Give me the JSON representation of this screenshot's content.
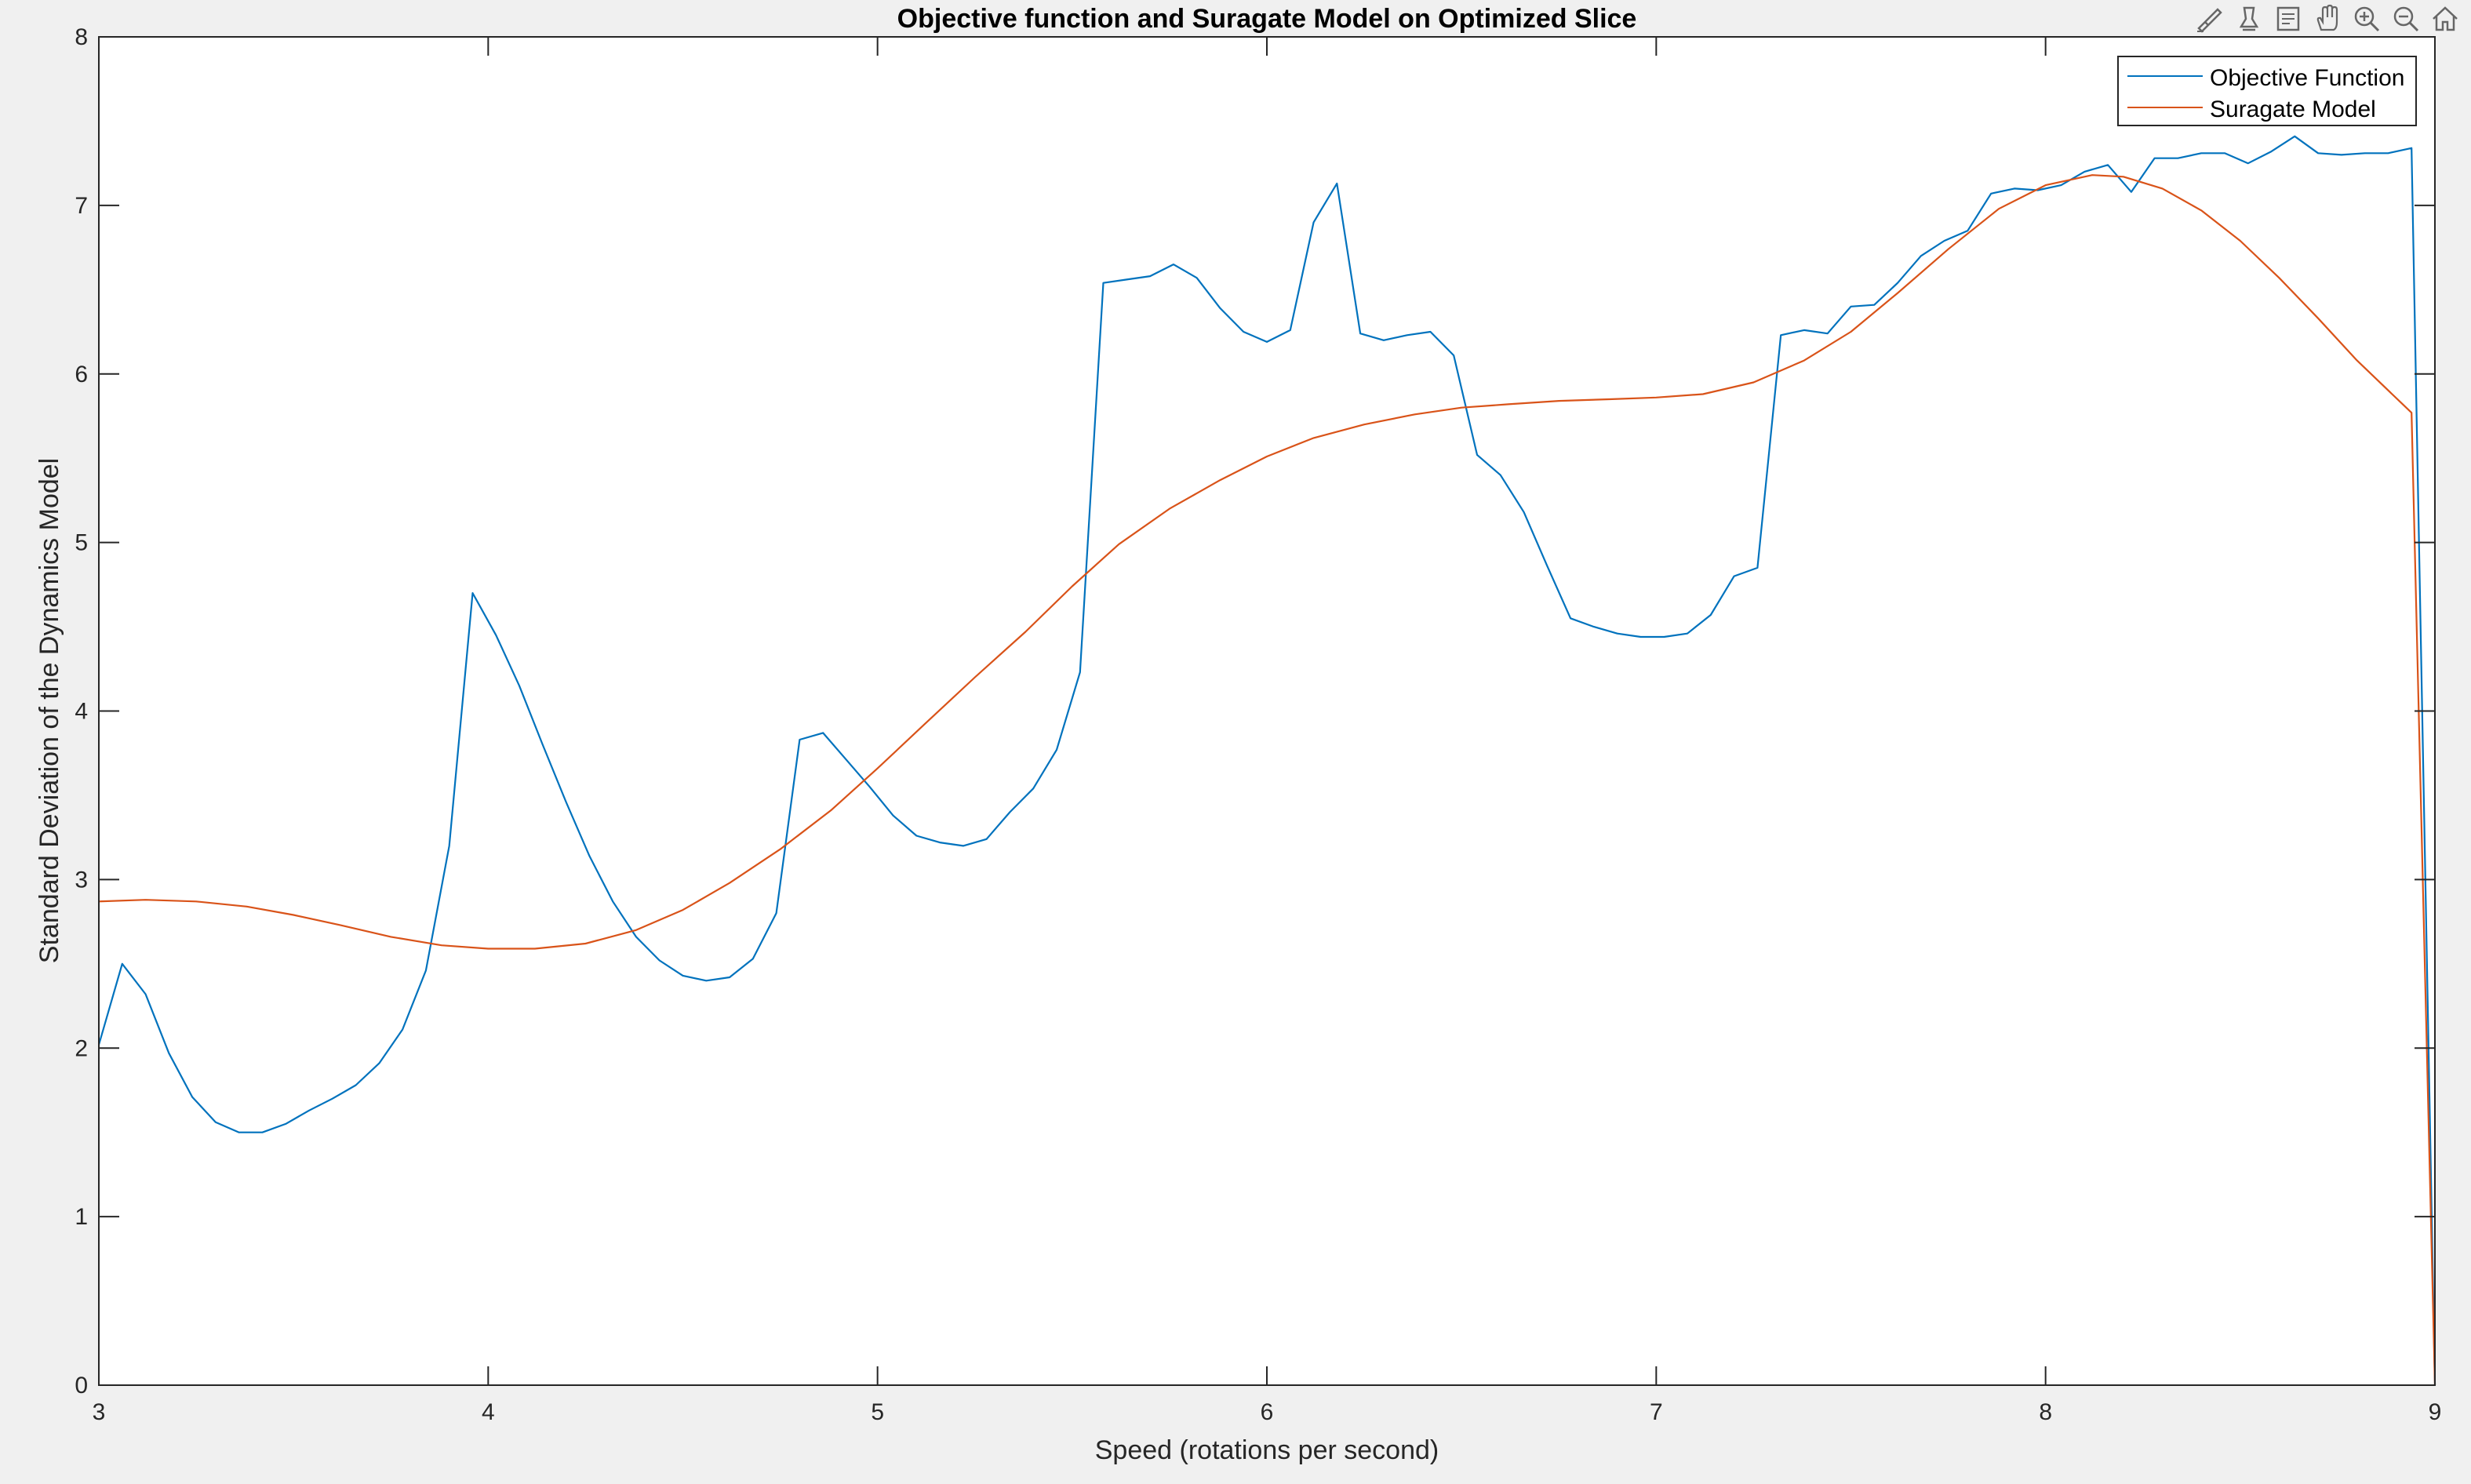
{
  "chart_data": {
    "type": "line",
    "title": "Objective function and Suragate Model on Optimized Slice",
    "xlabel": "Speed (rotations per second)",
    "ylabel": "Standard Deviation of the Dynamics Model",
    "xlim": [
      3,
      9
    ],
    "ylim": [
      0,
      8
    ],
    "xticks": [
      "3",
      "4",
      "5",
      "6",
      "7",
      "8",
      "9"
    ],
    "yticks": [
      "0",
      "1",
      "2",
      "3",
      "4",
      "5",
      "6",
      "7",
      "8"
    ],
    "legend_placement": "top-right",
    "grid": false,
    "series": [
      {
        "name": "Objective Function",
        "color": "#0072BD",
        "x": [
          3.0,
          3.06,
          3.12,
          3.18,
          3.24,
          3.3,
          3.36,
          3.42,
          3.48,
          3.54,
          3.6,
          3.66,
          3.72,
          3.78,
          3.84,
          3.9,
          3.96,
          4.02,
          4.08,
          4.14,
          4.2,
          4.26,
          4.32,
          4.38,
          4.44,
          4.5,
          4.56,
          4.62,
          4.68,
          4.74,
          4.8,
          4.86,
          4.92,
          4.98,
          5.04,
          5.1,
          5.16,
          5.22,
          5.28,
          5.34,
          5.4,
          5.46,
          5.52,
          5.58,
          5.64,
          5.7,
          5.76,
          5.82,
          5.88,
          5.94,
          6.0,
          6.06,
          6.12,
          6.18,
          6.24,
          6.3,
          6.36,
          6.42,
          6.48,
          6.54,
          6.6,
          6.66,
          6.72,
          6.78,
          6.84,
          6.9,
          6.96,
          7.02,
          7.08,
          7.14,
          7.2,
          7.26,
          7.32,
          7.38,
          7.44,
          7.5,
          7.56,
          7.62,
          7.68,
          7.74,
          7.8,
          7.86,
          7.92,
          7.98,
          8.04,
          8.1,
          8.16,
          8.22,
          8.28,
          8.34,
          8.4,
          8.46,
          8.52,
          8.58,
          8.64,
          8.7,
          8.76,
          8.82,
          8.88,
          8.94,
          9.0
        ],
        "y": [
          2.02,
          2.5,
          2.32,
          1.97,
          1.71,
          1.56,
          1.5,
          1.5,
          1.55,
          1.63,
          1.7,
          1.78,
          1.91,
          2.11,
          2.46,
          3.2,
          4.7,
          4.45,
          4.15,
          3.8,
          3.46,
          3.14,
          2.87,
          2.66,
          2.52,
          2.43,
          2.4,
          2.42,
          2.53,
          2.8,
          3.83,
          3.87,
          3.71,
          3.55,
          3.38,
          3.26,
          3.22,
          3.2,
          3.24,
          3.4,
          3.54,
          3.77,
          4.23,
          6.54,
          6.56,
          6.58,
          6.65,
          6.57,
          6.39,
          6.25,
          6.19,
          6.26,
          6.9,
          7.13,
          6.24,
          6.2,
          6.23,
          6.25,
          6.11,
          5.52,
          5.4,
          5.18,
          4.86,
          4.55,
          4.5,
          4.46,
          4.44,
          4.44,
          4.46,
          4.57,
          4.8,
          4.85,
          6.23,
          6.26,
          6.24,
          6.4,
          6.41,
          6.54,
          6.7,
          6.79,
          6.85,
          7.07,
          7.1,
          7.09,
          7.12,
          7.2,
          7.24,
          7.08,
          7.28,
          7.28,
          7.31,
          7.31,
          7.25,
          7.32,
          7.41,
          7.31,
          7.3,
          7.31,
          7.31,
          7.34,
          0.0
        ]
      },
      {
        "name": "Suragate Model",
        "color": "#D95319",
        "x": [
          3.0,
          3.12,
          3.25,
          3.38,
          3.5,
          3.62,
          3.75,
          3.88,
          4.0,
          4.12,
          4.25,
          4.38,
          4.5,
          4.62,
          4.75,
          4.88,
          5.0,
          5.12,
          5.25,
          5.38,
          5.5,
          5.62,
          5.75,
          5.88,
          6.0,
          6.12,
          6.25,
          6.38,
          6.5,
          6.62,
          6.75,
          6.88,
          7.0,
          7.12,
          7.25,
          7.38,
          7.5,
          7.62,
          7.75,
          7.88,
          8.0,
          8.12,
          8.2,
          8.3,
          8.4,
          8.5,
          8.6,
          8.7,
          8.8,
          8.94,
          9.0
        ],
        "y": [
          2.87,
          2.88,
          2.87,
          2.84,
          2.79,
          2.73,
          2.66,
          2.61,
          2.59,
          2.59,
          2.62,
          2.7,
          2.82,
          2.98,
          3.18,
          3.41,
          3.66,
          3.92,
          4.2,
          4.47,
          4.74,
          4.99,
          5.2,
          5.37,
          5.51,
          5.62,
          5.7,
          5.76,
          5.8,
          5.82,
          5.84,
          5.85,
          5.86,
          5.88,
          5.95,
          6.08,
          6.25,
          6.48,
          6.74,
          6.98,
          7.12,
          7.18,
          7.17,
          7.1,
          6.97,
          6.79,
          6.57,
          6.33,
          6.08,
          5.77,
          0.0
        ]
      }
    ]
  },
  "toolbar": {
    "icons": [
      "brush-icon",
      "data-tips-icon",
      "legend-icon",
      "pan-icon",
      "zoom-in-icon",
      "zoom-out-icon",
      "home-icon"
    ]
  }
}
